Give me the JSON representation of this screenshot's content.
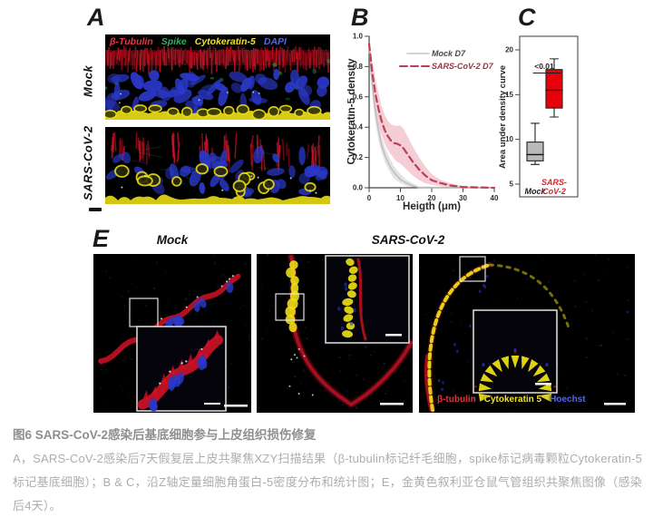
{
  "figure": {
    "panel_a": {
      "label": "A",
      "row_labels": [
        "Mock",
        "SARS-CoV-2"
      ],
      "stain_legend": [
        {
          "text": "β-Tubulin",
          "color": "#e23b44"
        },
        {
          "text": "Spike",
          "color": "#2cb25e"
        },
        {
          "text": "Cytokeratin-5",
          "color": "#f2e22e"
        },
        {
          "text": "DAPI",
          "color": "#5668e0"
        }
      ]
    },
    "panel_b": {
      "label": "B"
    },
    "panel_c": {
      "label": "C"
    },
    "panel_e": {
      "label": "E",
      "col_labels": [
        "Mock",
        "SARS-CoV-2"
      ],
      "stain_legend": [
        {
          "text": "β-tubulin",
          "color": "#e2333d"
        },
        {
          "text": "Cytokeratin 5",
          "color": "#f2e22e"
        },
        {
          "text": "Hoechst",
          "color": "#5668e0"
        }
      ]
    }
  },
  "caption": {
    "title": "图6 SARS-CoV-2感染后基底细胞参与上皮组织损伤修复",
    "body": "A，SARS-CoV-2感染后7天假复层上皮共聚焦XZY扫描结果（β-tubulin标记纤毛细胞，spike标记病毒颗粒Cytokeratin-5标记基底细胞）；B & C，沿Z轴定量细胞角蛋白-5密度分布和统计图；E，金黄色叙利亚仓鼠气管组织共聚焦图像（感染后4天）。"
  },
  "chart_data": [
    {
      "id": "panel_b",
      "type": "line",
      "title": "",
      "xlabel": "Heigth (μm)",
      "ylabel": "Cytokeratin-5 density",
      "xlim": [
        0,
        40
      ],
      "ylim": [
        0,
        1.0
      ],
      "xticks": [
        "0",
        "10",
        "20",
        "30",
        "40"
      ],
      "yticks": [
        "0.0",
        "0.2",
        "0.4",
        "0.6",
        "0.8",
        "1.0"
      ],
      "grid": false,
      "legend_position": "top-right",
      "series": [
        {
          "name": "Mock D7",
          "style": "solid",
          "color": "#b9b9b9",
          "band_color": "#dcdcdc",
          "label_color": "#474747",
          "x": [
            0,
            1,
            2,
            3,
            4,
            5,
            6,
            7,
            8,
            10,
            12,
            14,
            16,
            40
          ],
          "y": [
            0.92,
            0.68,
            0.5,
            0.38,
            0.28,
            0.22,
            0.17,
            0.13,
            0.1,
            0.055,
            0.03,
            0.012,
            0.0,
            0.0
          ],
          "band_upper": [
            0.96,
            0.74,
            0.56,
            0.44,
            0.34,
            0.27,
            0.22,
            0.18,
            0.14,
            0.09,
            0.05,
            0.03,
            0.01,
            0.0
          ],
          "band_lower": [
            0.86,
            0.6,
            0.43,
            0.31,
            0.23,
            0.17,
            0.13,
            0.09,
            0.06,
            0.03,
            0.01,
            0.0,
            0.0,
            0.0
          ]
        },
        {
          "name": "SARS-CoV-2 D7",
          "style": "dashed",
          "color": "#b94056",
          "band_color": "#f3c0cb",
          "label_color": "#993346",
          "x": [
            0,
            1,
            2,
            3,
            4,
            5,
            6,
            7,
            8,
            9,
            10,
            11,
            12,
            14,
            16,
            18,
            20,
            23,
            26,
            30,
            40
          ],
          "y": [
            0.95,
            0.76,
            0.62,
            0.52,
            0.44,
            0.38,
            0.34,
            0.31,
            0.295,
            0.29,
            0.28,
            0.26,
            0.23,
            0.17,
            0.12,
            0.08,
            0.05,
            0.03,
            0.015,
            0.005,
            0.0
          ],
          "band_upper": [
            0.98,
            0.84,
            0.72,
            0.62,
            0.54,
            0.48,
            0.44,
            0.42,
            0.41,
            0.41,
            0.41,
            0.39,
            0.35,
            0.27,
            0.2,
            0.14,
            0.09,
            0.05,
            0.03,
            0.01,
            0.0
          ],
          "band_lower": [
            0.88,
            0.65,
            0.52,
            0.42,
            0.35,
            0.29,
            0.25,
            0.22,
            0.19,
            0.17,
            0.16,
            0.14,
            0.12,
            0.08,
            0.05,
            0.03,
            0.02,
            0.01,
            0.0,
            0.0,
            0.0
          ]
        }
      ]
    },
    {
      "id": "panel_c",
      "type": "box",
      "ylabel": "Area under density curve",
      "ylim": [
        5,
        20
      ],
      "yticks": [
        "5",
        "10",
        "15",
        "20"
      ],
      "significance": "<0.01",
      "boxes": [
        {
          "name": "Mock",
          "name_lines": [
            "Mock"
          ],
          "fill": "#b9b9b9",
          "label_color": "#1d1d1d",
          "whisker_min": 7.2,
          "q1": 7.6,
          "median": 8.3,
          "q3": 9.7,
          "whisker_max": 11.8
        },
        {
          "name": "SARS-CoV-2",
          "name_lines": [
            "SARS-",
            "CoV-2"
          ],
          "fill": "#e8000b",
          "label_color": "#d8232b",
          "whisker_min": 12.5,
          "q1": 13.5,
          "median": 15.5,
          "q3": 17.8,
          "whisker_max": 19.0
        }
      ]
    }
  ]
}
